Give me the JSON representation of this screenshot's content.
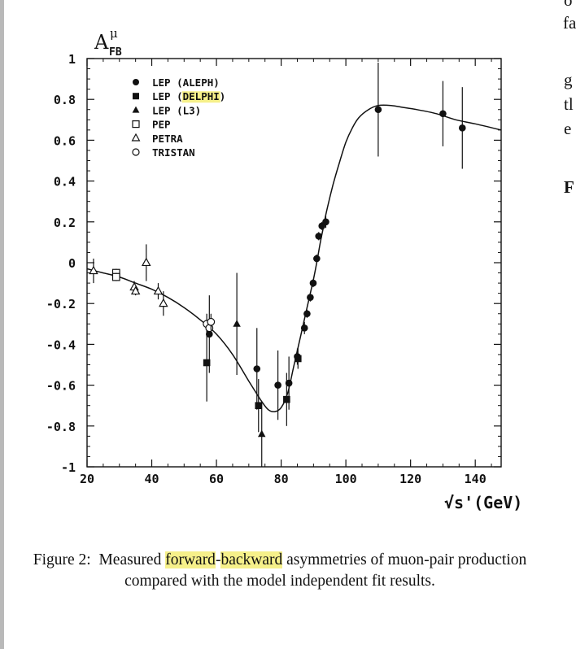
{
  "right_column": {
    "line1": "o",
    "line2": "fa",
    "line3": "g",
    "line4": "tl",
    "line5": "e",
    "line6": "F"
  },
  "figure": {
    "ylabel_main": "A",
    "ylabel_sup": "μ",
    "ylabel_sub": "FB",
    "xlabel": "√s'(GeV)"
  },
  "caption": {
    "prefix": "Figure 2:  Measured ",
    "highlight1": "forward",
    "hyphen": "-",
    "highlight2": "backward",
    "suffix": " asymmetries of muon-pair production compared with the model independent fit results."
  },
  "chart_data": {
    "type": "scatter",
    "title": "",
    "xlabel": "√s'(GeV)",
    "ylabel": "A FB μ",
    "xlim": [
      20,
      148
    ],
    "ylim": [
      -1,
      1
    ],
    "xticks": [
      20,
      40,
      60,
      80,
      100,
      120,
      140
    ],
    "yticks": [
      1,
      0.8,
      0.6,
      0.4,
      0.2,
      0,
      -0.2,
      -0.4,
      -0.6,
      -0.8,
      -1
    ],
    "ytick_labels": [
      "1",
      "0.8",
      "0.6",
      "0.4",
      "0.2",
      "0",
      "-0.2",
      "-0.4",
      "-0.6",
      "-0.8",
      "-1"
    ],
    "legend_position": "top-left",
    "series": [
      {
        "name": "LEP (ALEPH)",
        "marker": "filled-circle",
        "highlight": false,
        "points": [
          {
            "x": 57.8,
            "y": -0.35,
            "err": 0.19
          },
          {
            "x": 72.5,
            "y": -0.52,
            "err": 0.2
          },
          {
            "x": 79,
            "y": -0.6,
            "err": 0.17
          },
          {
            "x": 82.4,
            "y": -0.59,
            "err": 0.13
          },
          {
            "x": 85,
            "y": -0.46,
            "err": 0.04
          },
          {
            "x": 87.2,
            "y": -0.32,
            "err": 0.03
          },
          {
            "x": 88,
            "y": -0.25,
            "err": 0.02
          },
          {
            "x": 89,
            "y": -0.17,
            "err": 0.02
          },
          {
            "x": 89.9,
            "y": -0.1,
            "err": 0.02
          },
          {
            "x": 91,
            "y": 0.02,
            "err": 0.02
          },
          {
            "x": 91.6,
            "y": 0.13,
            "err": 0.02
          },
          {
            "x": 92.6,
            "y": 0.18,
            "err": 0.02
          },
          {
            "x": 93.8,
            "y": 0.2,
            "err": 0.03
          },
          {
            "x": 110,
            "y": 0.75,
            "err": 0.23
          },
          {
            "x": 130,
            "y": 0.73,
            "err": 0.16
          },
          {
            "x": 136,
            "y": 0.66,
            "err": 0.2
          }
        ]
      },
      {
        "name": "LEP (DELPHI)",
        "marker": "filled-square",
        "highlight": true,
        "points": [
          {
            "x": 57,
            "y": -0.49,
            "err": 0.19
          },
          {
            "x": 73,
            "y": -0.7,
            "err": 0.13
          },
          {
            "x": 81.7,
            "y": -0.67,
            "err": 0.13
          },
          {
            "x": 85.2,
            "y": -0.47,
            "err": 0.05
          }
        ]
      },
      {
        "name": "LEP (L3)",
        "marker": "filled-triangle",
        "highlight": false,
        "points": [
          {
            "x": 66.3,
            "y": -0.3,
            "err": 0.25
          },
          {
            "x": 74,
            "y": -0.84,
            "err": 0.16
          }
        ]
      },
      {
        "name": "PEP",
        "marker": "open-square",
        "highlight": false,
        "points": [
          {
            "x": 29,
            "y": -0.05,
            "err": 0.02
          },
          {
            "x": 29,
            "y": -0.07,
            "err": 0.02
          }
        ]
      },
      {
        "name": "PETRA",
        "marker": "open-triangle",
        "highlight": false,
        "points": [
          {
            "x": 22,
            "y": -0.04,
            "err": 0.06
          },
          {
            "x": 34.6,
            "y": -0.12,
            "err": 0.03
          },
          {
            "x": 35,
            "y": -0.14,
            "err": 0.02
          },
          {
            "x": 38.3,
            "y": 0,
            "err": 0.09
          },
          {
            "x": 42,
            "y": -0.14,
            "err": 0.04
          },
          {
            "x": 43.6,
            "y": -0.2,
            "err": 0.06
          }
        ]
      },
      {
        "name": "TRISTAN",
        "marker": "open-circle",
        "highlight": false,
        "points": [
          {
            "x": 57,
            "y": -0.3,
            "err": 0.05
          },
          {
            "x": 57.8,
            "y": -0.32,
            "err": 0.04
          },
          {
            "x": 58.3,
            "y": -0.29,
            "err": 0.04
          }
        ]
      }
    ],
    "fit_curve": {
      "x": [
        20,
        25,
        30,
        35,
        40,
        45,
        50,
        55,
        60,
        65,
        70,
        74,
        76,
        78,
        80,
        82,
        84,
        86,
        88,
        90,
        91,
        92,
        93,
        94,
        96,
        98,
        100,
        102,
        104,
        107,
        110,
        114,
        118,
        122,
        128,
        134,
        140,
        148
      ],
      "y": [
        -0.03,
        -0.05,
        -0.07,
        -0.1,
        -0.13,
        -0.17,
        -0.22,
        -0.28,
        -0.35,
        -0.45,
        -0.58,
        -0.68,
        -0.72,
        -0.73,
        -0.71,
        -0.64,
        -0.5,
        -0.36,
        -0.22,
        -0.08,
        0,
        0.09,
        0.17,
        0.25,
        0.38,
        0.49,
        0.59,
        0.66,
        0.71,
        0.75,
        0.77,
        0.77,
        0.76,
        0.75,
        0.73,
        0.7,
        0.68,
        0.65
      ]
    }
  }
}
